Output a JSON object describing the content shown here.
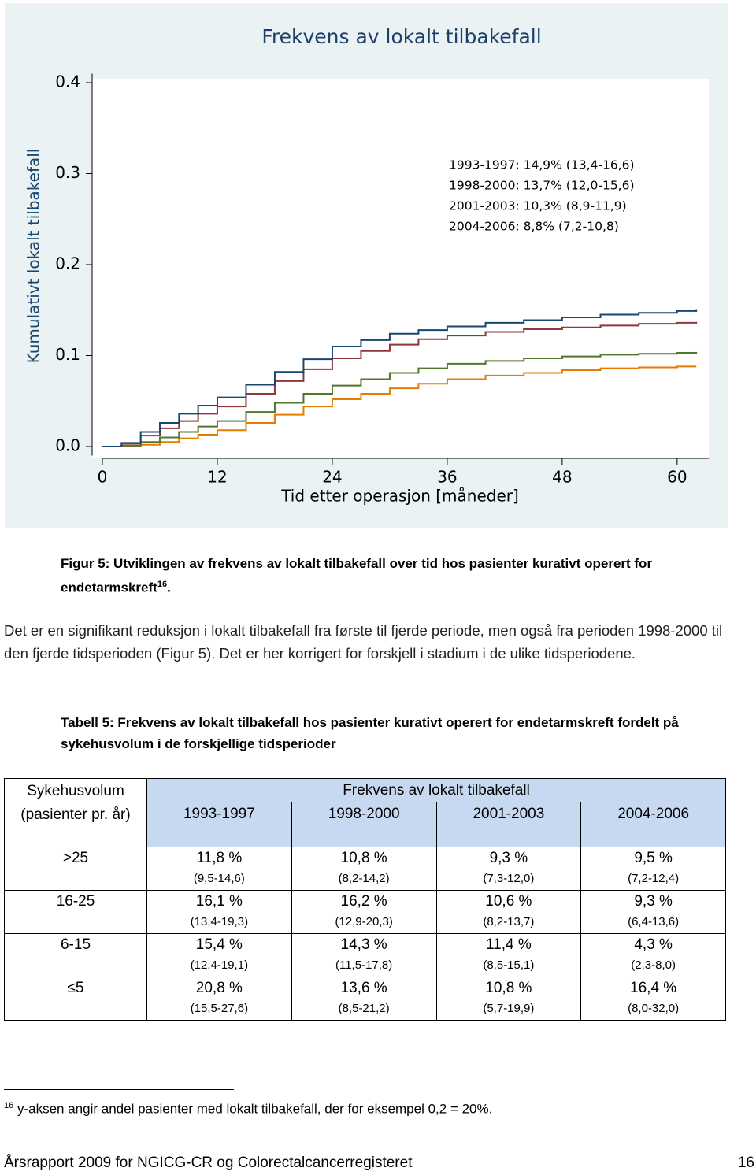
{
  "chart_data": {
    "type": "step",
    "title": "Frekvens av lokalt tilbakefall",
    "ylabel": "Kumulativt lokalt tilbakefall",
    "xlabel": "Tid etter operasjon [måneder]",
    "annotations": [
      "1993-1997: 14,9% (13,4-16,6)",
      "1998-2000: 13,7% (12,0-15,6)",
      "2001-2003: 10,3% (8,9-11,9)",
      "2004-2006: 8,8% (7,2-10,8)"
    ],
    "x": [
      0,
      2,
      4,
      6,
      8,
      10,
      12,
      15,
      18,
      21,
      24,
      27,
      30,
      33,
      36,
      40,
      44,
      48,
      52,
      56,
      60,
      62
    ],
    "series": [
      {
        "color": "#1a476f",
        "values": [
          0,
          0.004,
          0.016,
          0.026,
          0.036,
          0.045,
          0.054,
          0.068,
          0.082,
          0.096,
          0.11,
          0.117,
          0.124,
          0.128,
          0.132,
          0.136,
          0.139,
          0.142,
          0.145,
          0.147,
          0.149,
          0.151
        ]
      },
      {
        "color": "#90353b",
        "values": [
          0,
          0.003,
          0.012,
          0.02,
          0.028,
          0.036,
          0.044,
          0.058,
          0.072,
          0.085,
          0.097,
          0.105,
          0.112,
          0.118,
          0.122,
          0.126,
          0.129,
          0.131,
          0.133,
          0.135,
          0.136,
          0.137
        ]
      },
      {
        "color": "#55752f",
        "values": [
          0,
          0.001,
          0.005,
          0.01,
          0.016,
          0.022,
          0.028,
          0.038,
          0.048,
          0.058,
          0.067,
          0.074,
          0.081,
          0.086,
          0.091,
          0.094,
          0.097,
          0.099,
          0.101,
          0.102,
          0.103,
          0.104
        ]
      },
      {
        "color": "#e37e00",
        "values": [
          0,
          0,
          0.002,
          0.005,
          0.009,
          0.013,
          0.018,
          0.026,
          0.035,
          0.044,
          0.052,
          0.058,
          0.064,
          0.069,
          0.074,
          0.078,
          0.081,
          0.084,
          0.086,
          0.087,
          0.088,
          0.088
        ]
      }
    ],
    "xlim": [
      0,
      63.3
    ],
    "xticks": [
      0,
      12,
      24,
      36,
      48,
      60
    ],
    "ylim": [
      -0.01,
      0.41
    ],
    "yticks": [
      {
        "value": 0,
        "label": "0.0"
      },
      0.1,
      0.2,
      0.3,
      0.4
    ]
  },
  "caption": {
    "text": "Figur 5: Utviklingen av frekvens av lokalt tilbakefall over tid hos pasienter kurativt operert for endetarmskreft",
    "sup": "16",
    "end": "."
  },
  "paragraph": "Det er en signifikant reduksjon i lokalt tilbakefall fra første til fjerde periode, men også fra perioden 1998-2000 til den fjerde tidsperioden (Figur 5). Det er her korrigert for forskjell i stadium i de ulike tidsperiodene.",
  "table_caption": "Tabell 5: Frekvens av lokalt tilbakefall hos pasienter kurativt operert for endetarmskreft fordelt på sykehusvolum i de forskjellige tidsperioder",
  "table": {
    "corner": "Sykehusvolum (pasienter pr. år)",
    "group": "Frekvens av lokalt tilbakefall",
    "periods": [
      "1993-1997",
      "1998-2000",
      "2001-2003",
      "2004-2006"
    ],
    "rows": [
      {
        "label": ">25",
        "cells": [
          {
            "value": "11,8 %",
            "ci": "(9,5-14,6)"
          },
          {
            "value": "10,8 %",
            "ci": "(8,2-14,2)"
          },
          {
            "value": "9,3 %",
            "ci": "(7,3-12,0)"
          },
          {
            "value": "9,5 %",
            "ci": "(7,2-12,4)"
          }
        ]
      },
      {
        "label": "16-25",
        "cells": [
          {
            "value": "16,1 %",
            "ci": "(13,4-19,3)"
          },
          {
            "value": "16,2 %",
            "ci": "(12,9-20,3)"
          },
          {
            "value": "10,6 %",
            "ci": "(8,2-13,7)"
          },
          {
            "value": "9,3 %",
            "ci": "(6,4-13,6)"
          }
        ]
      },
      {
        "label": "6-15",
        "cells": [
          {
            "value": "15,4 %",
            "ci": "(12,4-19,1)"
          },
          {
            "value": "14,3 %",
            "ci": "(11,5-17,8)"
          },
          {
            "value": "11,4 %",
            "ci": "(8,5-15,1)"
          },
          {
            "value": "4,3 %",
            "ci": "(2,3-8,0)"
          }
        ]
      },
      {
        "label": "≤5",
        "cells": [
          {
            "value": "20,8 %",
            "ci": "(15,5-27,6)"
          },
          {
            "value": "13,6 %",
            "ci": "(8,5-21,2)"
          },
          {
            "value": "10,8 %",
            "ci": "(5,7-19,9)"
          },
          {
            "value": "16,4 %",
            "ci": "(8,0-32,0)"
          }
        ]
      }
    ]
  },
  "footnote": {
    "number": "16",
    "text": "y-aksen angir andel pasienter med lokalt tilbakefall, der for eksempel 0,2 = 20%."
  },
  "footer": {
    "left": "Årsrapport 2009 for NGICG-CR og Colorectalcancerregisteret",
    "page": "16"
  }
}
